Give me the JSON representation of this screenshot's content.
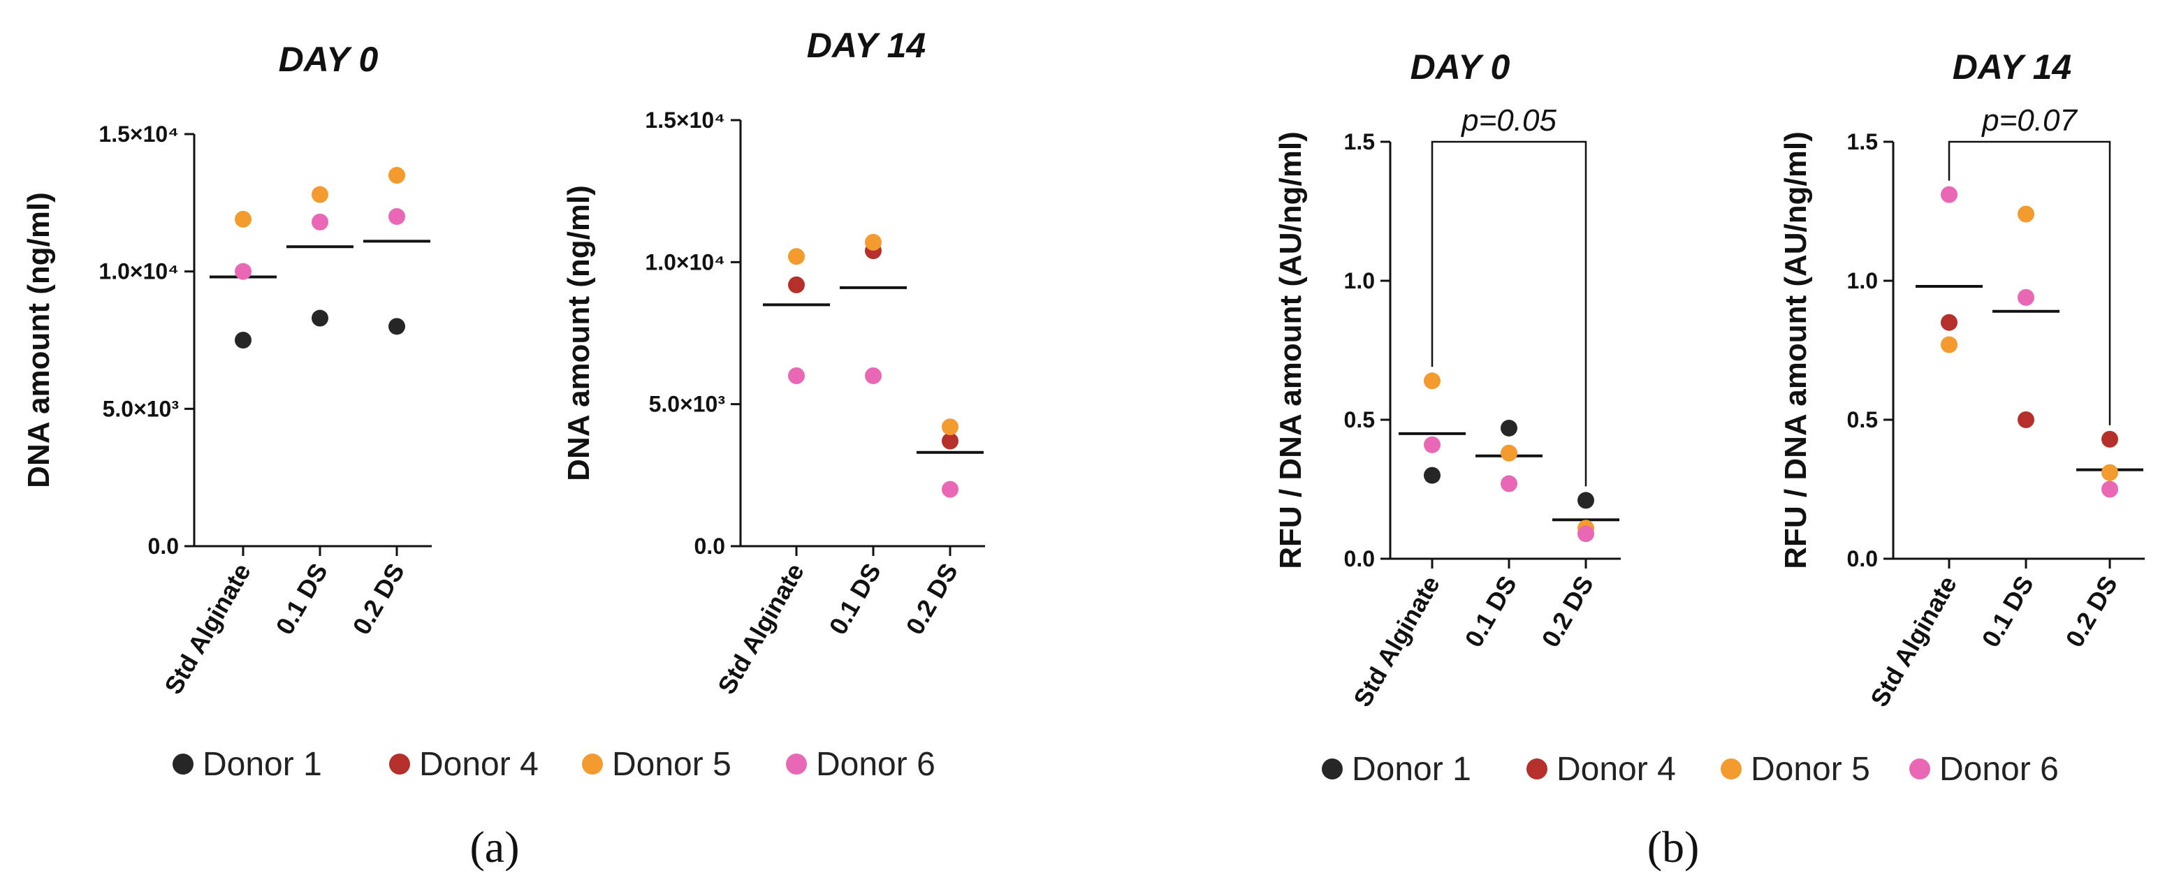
{
  "colors": {
    "Donor 1": "#262626",
    "Donor 4": "#b5302a",
    "Donor 5": "#f39b2e",
    "Donor 6": "#e868b6"
  },
  "chart_data": [
    {
      "type": "scatter",
      "title": "DAY 0",
      "ylabel": "DNA amount (ng/ml)",
      "categories": [
        "Std Alginate",
        "0.1 DS",
        "0.2 DS"
      ],
      "yticks": [
        "0.0",
        "5.0×10³",
        "1.0×10⁴",
        "1.5×10⁴"
      ],
      "ylim": [
        0,
        15000
      ],
      "tick_values": [
        0,
        5000,
        10000,
        15000
      ],
      "means": [
        9800,
        10900,
        11100
      ],
      "series": [
        {
          "name": "Donor 1",
          "values": [
            7500,
            8300,
            8000
          ]
        },
        {
          "name": "Donor 5",
          "values": [
            11900,
            12800,
            13500
          ]
        },
        {
          "name": "Donor 6",
          "values": [
            10000,
            11800,
            12000
          ]
        }
      ]
    },
    {
      "type": "scatter",
      "title": "DAY 14",
      "ylabel": "DNA amount (ng/ml)",
      "categories": [
        "Std Alginate",
        "0.1 DS",
        "0.2 DS"
      ],
      "yticks": [
        "0.0",
        "5.0×10³",
        "1.0×10⁴",
        "1.5×10⁴"
      ],
      "ylim": [
        0,
        15000
      ],
      "tick_values": [
        0,
        5000,
        10000,
        15000
      ],
      "means": [
        8500,
        9100,
        3300
      ],
      "series": [
        {
          "name": "Donor 4",
          "values": [
            9200,
            10400,
            3700
          ]
        },
        {
          "name": "Donor 5",
          "values": [
            10200,
            10700,
            4200
          ]
        },
        {
          "name": "Donor 6",
          "values": [
            6000,
            6000,
            2000
          ]
        }
      ]
    },
    {
      "type": "scatter",
      "title": "DAY 0",
      "ylabel": "RFU / DNA amount (AU/ng/ml)",
      "categories": [
        "Std Alginate",
        "0.1 DS",
        "0.2 DS"
      ],
      "yticks": [
        "0.0",
        "0.5",
        "1.0",
        "1.5"
      ],
      "ylim": [
        0,
        1.5
      ],
      "tick_values": [
        0,
        0.5,
        1.0,
        1.5
      ],
      "means": [
        0.45,
        0.37,
        0.14
      ],
      "significance": {
        "from": 0,
        "to": 2,
        "label": "p=0.05"
      },
      "series": [
        {
          "name": "Donor 1",
          "values": [
            0.3,
            0.47,
            0.21
          ]
        },
        {
          "name": "Donor 5",
          "values": [
            0.64,
            0.38,
            0.11
          ]
        },
        {
          "name": "Donor 6",
          "values": [
            0.41,
            0.27,
            0.09
          ]
        }
      ]
    },
    {
      "type": "scatter",
      "title": "DAY 14",
      "ylabel": "RFU / DNA amount (AU/ng/ml)",
      "categories": [
        "Std Alginate",
        "0.1 DS",
        "0.2 DS"
      ],
      "yticks": [
        "0.0",
        "0.5",
        "1.0",
        "1.5"
      ],
      "ylim": [
        0,
        1.5
      ],
      "tick_values": [
        0,
        0.5,
        1.0,
        1.5
      ],
      "means": [
        0.98,
        0.89,
        0.32
      ],
      "significance": {
        "from": 0,
        "to": 2,
        "label": "p=0.07"
      },
      "series": [
        {
          "name": "Donor 4",
          "values": [
            0.85,
            0.5,
            0.43
          ]
        },
        {
          "name": "Donor 5",
          "values": [
            0.77,
            1.24,
            0.31
          ]
        },
        {
          "name": "Donor 6",
          "values": [
            1.31,
            0.94,
            0.25
          ]
        }
      ]
    }
  ],
  "legends": [
    {
      "items": [
        "Donor 1",
        "Donor 4",
        "Donor 5",
        "Donor 6"
      ]
    },
    {
      "items": [
        "Donor 1",
        "Donor 4",
        "Donor 5",
        "Donor 6"
      ]
    }
  ],
  "panel_labels": [
    "(a)",
    "(b)"
  ]
}
